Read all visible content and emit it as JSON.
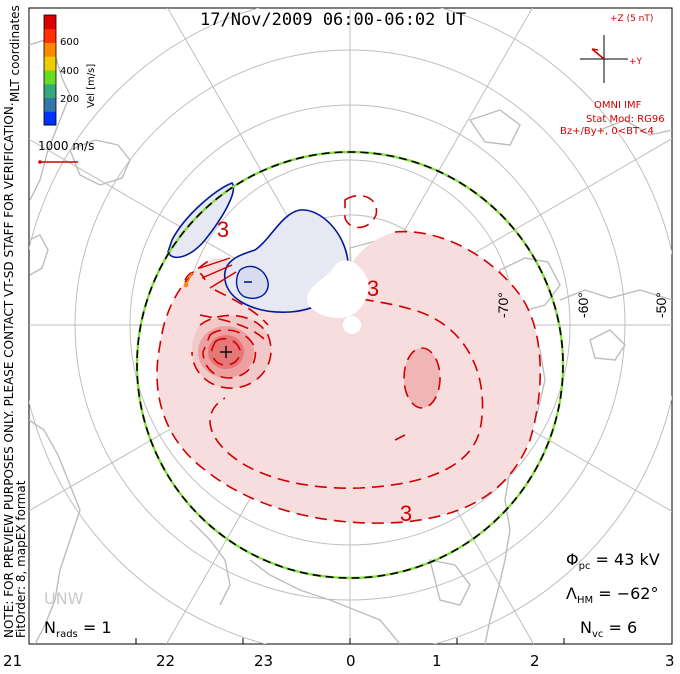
{
  "header": {
    "title": "17/Nov/2009 06:00-06:02 UT"
  },
  "colorbar": {
    "label": "Vel [m/s]",
    "ticks": [
      "600",
      "400",
      "200"
    ],
    "colors": [
      "#0033ff",
      "#3377aa",
      "#33aa77",
      "#66dd22",
      "#eecc00",
      "#ff8800",
      "#ff3300",
      "#dd0000"
    ]
  },
  "side_notes": {
    "coords": "MLT coordinates",
    "verification": "NOTE: FOR PREVIEW PURPOSES ONLY. PLEASE CONTACT VT-SD STAFF FOR VERIFICATION.",
    "fitorder": "FitOrder: 8, mapEX format"
  },
  "vector_scale": {
    "label": "1000 m/s",
    "color": "#d00000"
  },
  "imf": {
    "z_label": "+Z (5 nT)",
    "y_label": "+Y",
    "source": "OMNI IMF",
    "model": "Stat Mod: RG96",
    "condition": "Bz+/By+, 0<BT<4",
    "color": "#d00000"
  },
  "lat_labels": [
    "-70°",
    "-60°",
    "-50°"
  ],
  "contour_labels": [
    "3",
    "3",
    "3"
  ],
  "stats": {
    "phi_sym": "Φ",
    "phi_sub": "pc",
    "phi_val": "= 43 kV",
    "hm_sym": "Λ",
    "hm_sub": "HM",
    "hm_val": "= −62°",
    "nvc_sym": "N",
    "nvc_sub": "vc",
    "nvc_val": "= 6",
    "nrads_sym": "N",
    "nrads_sub": "rads",
    "nrads_val": "= 1"
  },
  "station": "UNW",
  "mlt_ticks": [
    "21",
    "22",
    "23",
    "0",
    "1",
    "2",
    "3"
  ],
  "chart_data": {
    "type": "contour",
    "title": "17/Nov/2009 06:00-06:02 UT",
    "coordinate_system": "MLT coordinates",
    "x_tick_labels": [
      "21",
      "22",
      "23",
      "0",
      "1",
      "2",
      "3"
    ],
    "latitude_labels": [
      "-70°",
      "-60°",
      "-50°"
    ],
    "velocity_colorbar_ticks": [
      200,
      400,
      600
    ],
    "cross_polar_cap_potential_kV": 43,
    "heppner_maynard_boundary_deg": -62,
    "n_vectors": 6,
    "n_radars": 1,
    "contour_labels": [
      "3",
      "3",
      "3"
    ],
    "positive_cells_color": "#d00000",
    "negative_cells_color": "#001a99"
  }
}
